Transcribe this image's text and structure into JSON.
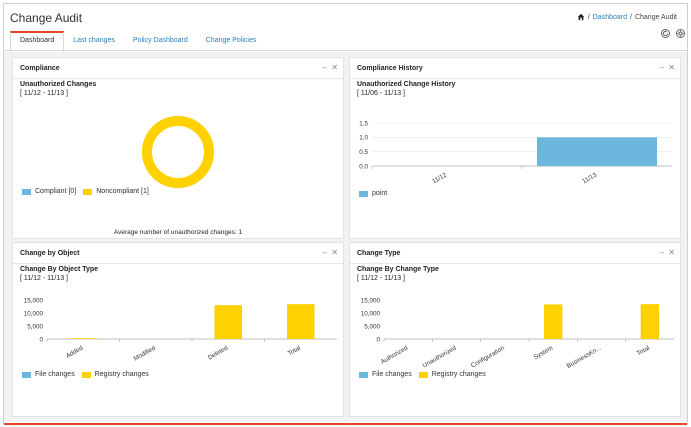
{
  "app": {
    "title": "Change Audit"
  },
  "breadcrumb": {
    "home_label": "Dashboard",
    "separator": "/",
    "current": "Change Audit"
  },
  "tabs": [
    {
      "label": "Dashboard",
      "active": true
    },
    {
      "label": "Last changes",
      "active": false
    },
    {
      "label": "Policy Dashboard",
      "active": false
    },
    {
      "label": "Change Policies",
      "active": false
    }
  ],
  "toolbar": {
    "refresh_icon": "refresh-icon",
    "settings_icon": "settings-icon"
  },
  "widgets": {
    "compliance": {
      "title": "Compliance",
      "subtitle": "Unauthorized Changes",
      "range": "[ 11/12 - 11/13 ]",
      "footer": "Average number of unauthorized changes: 1",
      "minimize": "–",
      "close": "✕"
    },
    "history": {
      "title": "Compliance History",
      "subtitle": "Unauthorized Change History",
      "range": "[ 11/06 - 11/13 ]",
      "minimize": "–",
      "close": "✕"
    },
    "by_object": {
      "title": "Change by Object",
      "subtitle": "Change By Object Type",
      "range": "[ 11/12 - 11/13 ]",
      "minimize": "–",
      "close": "✕"
    },
    "by_type": {
      "title": "Change Type",
      "subtitle": "Change By Change Type",
      "range": "[ 11/12 - 11/13 ]",
      "minimize": "–",
      "close": "✕"
    }
  },
  "colors": {
    "blue": "#6bb7dd",
    "yellow": "#ffd100",
    "accent": "#e2432a",
    "link": "#2a7fc0"
  },
  "chart_data": [
    {
      "type": "pie",
      "categories": [
        "Compliant [0]",
        "Noncompliant [1]"
      ],
      "values": [
        0,
        1
      ],
      "legend": "bottom-left"
    },
    {
      "type": "bar",
      "categories": [
        "11/12",
        "11/13"
      ],
      "series": [
        {
          "name": "point",
          "values": [
            0,
            1
          ]
        }
      ],
      "yticks": [
        "0.0",
        "0.5",
        "1.0",
        "1.5"
      ],
      "ylim": [
        0,
        1.5
      ]
    },
    {
      "type": "bar",
      "categories": [
        "Added",
        "Modified",
        "Deleted",
        "Total"
      ],
      "series": [
        {
          "name": "File changes",
          "values": [
            0,
            0,
            0,
            0
          ]
        },
        {
          "name": "Registry changes",
          "values": [
            300,
            0,
            13000,
            13400
          ]
        }
      ],
      "yticks": [
        "0",
        "5,000",
        "10,000",
        "15,000"
      ],
      "ylim": [
        0,
        15000
      ]
    },
    {
      "type": "bar",
      "categories": [
        "Authorized",
        "Unauthorized",
        "Configuration",
        "System",
        "BusinessKn...",
        "Total"
      ],
      "series": [
        {
          "name": "File changes",
          "values": [
            0,
            0,
            0,
            0,
            0,
            0
          ]
        },
        {
          "name": "Registry changes",
          "values": [
            0,
            0,
            0,
            13300,
            0,
            13400
          ]
        }
      ],
      "yticks": [
        "0",
        "5,000",
        "10,000",
        "15,000"
      ],
      "ylim": [
        0,
        15000
      ]
    }
  ]
}
